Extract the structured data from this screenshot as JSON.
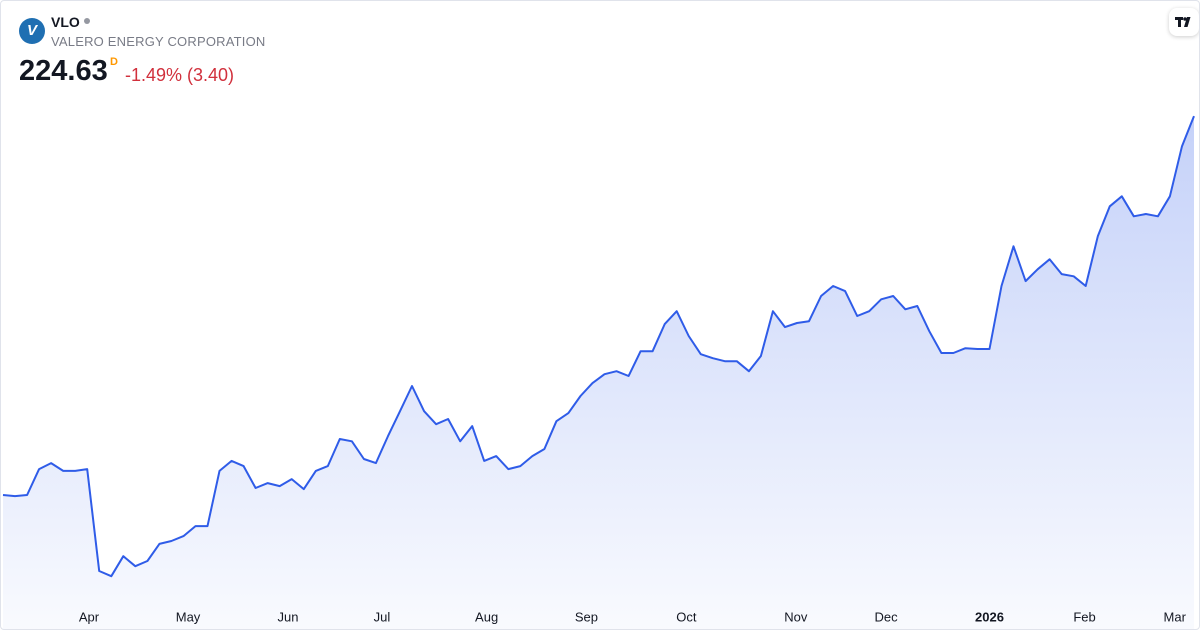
{
  "header": {
    "symbol": "VLO",
    "name": "VALERO ENERGY CORPORATION",
    "price": "224.63",
    "price_flag": "D",
    "change": "-1.49% (3.40)"
  },
  "chart_data": {
    "type": "line",
    "color": "#2f5ce8",
    "fill": true,
    "values": [
      122.4,
      122.1,
      122.4,
      129.4,
      131.0,
      128.9,
      128.9,
      129.4,
      101.9,
      100.5,
      105.9,
      103.2,
      104.6,
      109.2,
      110.0,
      111.3,
      114.0,
      114.0,
      128.9,
      131.6,
      130.2,
      124.3,
      125.6,
      124.8,
      126.7,
      124.0,
      128.9,
      130.2,
      137.5,
      136.9,
      132.1,
      131.0,
      138.3,
      145.0,
      151.8,
      145.0,
      141.5,
      142.9,
      136.9,
      141.0,
      131.6,
      132.9,
      129.4,
      130.2,
      132.9,
      134.8,
      142.3,
      144.5,
      149.1,
      152.6,
      155.0,
      155.8,
      154.5,
      161.2,
      161.2,
      168.5,
      172.0,
      165.3,
      160.4,
      159.3,
      158.5,
      158.5,
      155.8,
      159.9,
      172.0,
      167.7,
      168.8,
      169.3,
      176.1,
      178.8,
      177.4,
      170.7,
      172.0,
      175.2,
      176.1,
      172.5,
      173.4,
      166.6,
      160.7,
      160.7,
      162.0,
      161.8,
      161.8,
      178.8,
      189.5,
      180.1,
      183.3,
      186.0,
      182.0,
      181.4,
      178.8,
      192.2,
      200.3,
      203.0,
      197.6,
      198.2,
      197.6,
      203.0,
      216.5,
      224.63
    ],
    "xlim": [
      0,
      99
    ],
    "ylim": [
      93.8,
      228.7
    ],
    "xticks": [
      {
        "value": 7.15,
        "label": "Apr"
      },
      {
        "value": 15.38,
        "label": "May"
      },
      {
        "value": 23.69,
        "label": "Jun"
      },
      {
        "value": 31.5,
        "label": "Jul"
      },
      {
        "value": 40.2,
        "label": "Aug"
      },
      {
        "value": 48.5,
        "label": "Sep"
      },
      {
        "value": 56.8,
        "label": "Oct"
      },
      {
        "value": 65.9,
        "label": "Nov"
      },
      {
        "value": 73.4,
        "label": "Dec"
      },
      {
        "value": 82.0,
        "label": "2026"
      },
      {
        "value": 89.9,
        "label": "Feb"
      },
      {
        "value": 97.4,
        "label": "Mar"
      }
    ]
  }
}
